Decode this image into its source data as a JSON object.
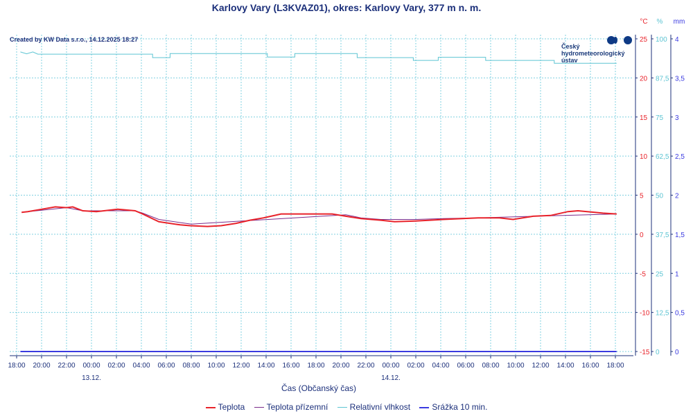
{
  "title": "Karlovy Vary (L3KVAZ01), okres: Karlovy Vary, 377 m n. m.",
  "credit": "Created by KW Data s.r.o., 14.12.2025 18:27",
  "logo": [
    "Český",
    "hydrometeorologický",
    "ústav"
  ],
  "colors": {
    "temp": "#e8222a",
    "ground": "#7a2a8a",
    "humidity": "#5cc4d2",
    "precip": "#3a3ae0",
    "axis": "#1b2f7a",
    "grid": "#7fd0e0"
  },
  "chart_data": {
    "type": "line",
    "title": "Karlovy Vary (L3KVAZ01), okres: Karlovy Vary, 377 m n. m.",
    "xlabel": "Čas (Občanský čas)",
    "x_unit": "hours since 12.12. 18:00",
    "x_ticks": [
      "18:00",
      "20:00",
      "22:00",
      "00:00",
      "02:00",
      "04:00",
      "06:00",
      "08:00",
      "10:00",
      "12:00",
      "14:00",
      "16:00",
      "18:00",
      "20:00",
      "22:00",
      "00:00",
      "02:00",
      "04:00",
      "06:00",
      "08:00",
      "10:00",
      "12:00",
      "14:00",
      "16:00",
      "18:00"
    ],
    "date_labels": [
      {
        "hour": 6,
        "label": "13.12."
      },
      {
        "hour": 30,
        "label": "14.12."
      }
    ],
    "axes": {
      "temp": {
        "unit": "°C",
        "range": [
          -15,
          25
        ],
        "ticks": [
          "25",
          "20",
          "15",
          "10",
          "5",
          "0",
          "-5",
          "-10",
          "-15"
        ]
      },
      "humidity": {
        "unit": "%",
        "range": [
          0,
          100
        ],
        "ticks": [
          "100",
          "87,5",
          "75",
          "62,5",
          "50",
          "37,5",
          "25",
          "12,5",
          "0"
        ]
      },
      "precip": {
        "unit": "mm",
        "range": [
          0,
          4
        ],
        "ticks": [
          "4",
          "3,5",
          "3",
          "2,5",
          "2",
          "1,5",
          "1",
          "0,5",
          "0"
        ]
      }
    },
    "grid": true,
    "legend_position": "bottom",
    "series": [
      {
        "name": "Teplota",
        "axis": "temp",
        "points": [
          [
            0.4,
            2.8
          ],
          [
            0.9,
            2.9
          ],
          [
            2,
            3.2
          ],
          [
            3.1,
            3.5
          ],
          [
            4,
            3.4
          ],
          [
            4.5,
            3.5
          ],
          [
            5.3,
            3.0
          ],
          [
            6.4,
            2.9
          ],
          [
            8.1,
            3.2
          ],
          [
            9.5,
            3.0
          ],
          [
            10.1,
            2.6
          ],
          [
            11.4,
            1.6
          ],
          [
            13.1,
            1.2
          ],
          [
            13.9,
            1.1
          ],
          [
            15.3,
            1.0
          ],
          [
            16.4,
            1.1
          ],
          [
            17.6,
            1.4
          ],
          [
            18.7,
            1.8
          ],
          [
            19.8,
            2.1
          ],
          [
            21.2,
            2.6
          ],
          [
            25.3,
            2.6
          ],
          [
            26.4,
            2.3
          ],
          [
            27.6,
            2.0
          ],
          [
            29.2,
            1.8
          ],
          [
            30.3,
            1.6
          ],
          [
            32,
            1.7
          ],
          [
            34.2,
            1.9
          ],
          [
            37,
            2.1
          ],
          [
            38.7,
            2.1
          ],
          [
            39.8,
            1.9
          ],
          [
            41.4,
            2.3
          ],
          [
            42.8,
            2.4
          ],
          [
            44.2,
            2.9
          ],
          [
            45,
            3.0
          ],
          [
            47,
            2.7
          ],
          [
            48.1,
            2.6
          ]
        ]
      },
      {
        "name": "Teplota přízemní",
        "axis": "temp",
        "points": [
          [
            0.4,
            2.8
          ],
          [
            4,
            3.4
          ],
          [
            5.3,
            3.0
          ],
          [
            9.5,
            3.0
          ],
          [
            10.1,
            2.7
          ],
          [
            11.4,
            1.9
          ],
          [
            13.1,
            1.5
          ],
          [
            14,
            1.3
          ],
          [
            26.4,
            2.5
          ],
          [
            27.6,
            2.1
          ],
          [
            29.2,
            1.9
          ],
          [
            30.3,
            1.9
          ],
          [
            32,
            1.9
          ],
          [
            34.2,
            2.0
          ],
          [
            37,
            2.1
          ],
          [
            48.1,
            2.6
          ]
        ]
      },
      {
        "name": "Relativní vlhkost",
        "axis": "humidity",
        "points": [
          [
            0.3,
            95.8
          ],
          [
            0.8,
            95.2
          ],
          [
            1.3,
            95.8
          ],
          [
            1.7,
            95.1
          ],
          [
            10.9,
            95.1
          ],
          [
            10.9,
            94
          ],
          [
            12.3,
            94
          ],
          [
            12.3,
            95.3
          ],
          [
            20.1,
            95.3
          ],
          [
            20.1,
            94.2
          ],
          [
            22.3,
            94.2
          ],
          [
            22.3,
            95.3
          ],
          [
            27.3,
            95.3
          ],
          [
            27.3,
            94
          ],
          [
            31.8,
            94
          ],
          [
            31.8,
            93.1
          ],
          [
            33.8,
            93.1
          ],
          [
            33.8,
            94.1
          ],
          [
            37.6,
            94.1
          ],
          [
            37.6,
            93.1
          ],
          [
            43.1,
            93.1
          ],
          [
            43.1,
            92.2
          ],
          [
            48.1,
            92.2
          ]
        ]
      },
      {
        "name": "Srážka 10 min.",
        "axis": "precip",
        "points": [
          [
            0.3,
            0
          ],
          [
            48.1,
            0
          ]
        ]
      }
    ]
  }
}
